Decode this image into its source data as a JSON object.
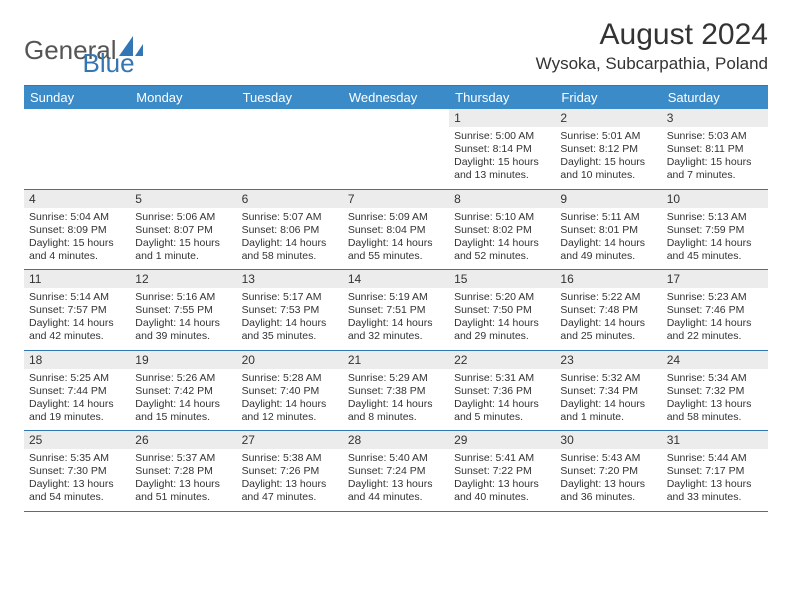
{
  "logo": {
    "text1": "General",
    "text2": "Blue"
  },
  "title": "August 2024",
  "location": "Wysoka, Subcarpathia, Poland",
  "colors": {
    "header_bg": "#3b8bc8",
    "header_text": "#ffffff",
    "rule": "#3277b3",
    "daynum_bg": "#ececec",
    "body_text": "#333333"
  },
  "typography": {
    "title_fontsize": 30,
    "location_fontsize": 17,
    "header_fontsize": 13,
    "body_fontsize": 10.5
  },
  "calendar": {
    "type": "table",
    "columns": [
      "Sunday",
      "Monday",
      "Tuesday",
      "Wednesday",
      "Thursday",
      "Friday",
      "Saturday"
    ],
    "weeks": [
      [
        null,
        null,
        null,
        null,
        {
          "n": "1",
          "sr": "5:00 AM",
          "ss": "8:14 PM",
          "dl": "15 hours and 13 minutes."
        },
        {
          "n": "2",
          "sr": "5:01 AM",
          "ss": "8:12 PM",
          "dl": "15 hours and 10 minutes."
        },
        {
          "n": "3",
          "sr": "5:03 AM",
          "ss": "8:11 PM",
          "dl": "15 hours and 7 minutes."
        }
      ],
      [
        {
          "n": "4",
          "sr": "5:04 AM",
          "ss": "8:09 PM",
          "dl": "15 hours and 4 minutes."
        },
        {
          "n": "5",
          "sr": "5:06 AM",
          "ss": "8:07 PM",
          "dl": "15 hours and 1 minute."
        },
        {
          "n": "6",
          "sr": "5:07 AM",
          "ss": "8:06 PM",
          "dl": "14 hours and 58 minutes."
        },
        {
          "n": "7",
          "sr": "5:09 AM",
          "ss": "8:04 PM",
          "dl": "14 hours and 55 minutes."
        },
        {
          "n": "8",
          "sr": "5:10 AM",
          "ss": "8:02 PM",
          "dl": "14 hours and 52 minutes."
        },
        {
          "n": "9",
          "sr": "5:11 AM",
          "ss": "8:01 PM",
          "dl": "14 hours and 49 minutes."
        },
        {
          "n": "10",
          "sr": "5:13 AM",
          "ss": "7:59 PM",
          "dl": "14 hours and 45 minutes."
        }
      ],
      [
        {
          "n": "11",
          "sr": "5:14 AM",
          "ss": "7:57 PM",
          "dl": "14 hours and 42 minutes."
        },
        {
          "n": "12",
          "sr": "5:16 AM",
          "ss": "7:55 PM",
          "dl": "14 hours and 39 minutes."
        },
        {
          "n": "13",
          "sr": "5:17 AM",
          "ss": "7:53 PM",
          "dl": "14 hours and 35 minutes."
        },
        {
          "n": "14",
          "sr": "5:19 AM",
          "ss": "7:51 PM",
          "dl": "14 hours and 32 minutes."
        },
        {
          "n": "15",
          "sr": "5:20 AM",
          "ss": "7:50 PM",
          "dl": "14 hours and 29 minutes."
        },
        {
          "n": "16",
          "sr": "5:22 AM",
          "ss": "7:48 PM",
          "dl": "14 hours and 25 minutes."
        },
        {
          "n": "17",
          "sr": "5:23 AM",
          "ss": "7:46 PM",
          "dl": "14 hours and 22 minutes."
        }
      ],
      [
        {
          "n": "18",
          "sr": "5:25 AM",
          "ss": "7:44 PM",
          "dl": "14 hours and 19 minutes."
        },
        {
          "n": "19",
          "sr": "5:26 AM",
          "ss": "7:42 PM",
          "dl": "14 hours and 15 minutes."
        },
        {
          "n": "20",
          "sr": "5:28 AM",
          "ss": "7:40 PM",
          "dl": "14 hours and 12 minutes."
        },
        {
          "n": "21",
          "sr": "5:29 AM",
          "ss": "7:38 PM",
          "dl": "14 hours and 8 minutes."
        },
        {
          "n": "22",
          "sr": "5:31 AM",
          "ss": "7:36 PM",
          "dl": "14 hours and 5 minutes."
        },
        {
          "n": "23",
          "sr": "5:32 AM",
          "ss": "7:34 PM",
          "dl": "14 hours and 1 minute."
        },
        {
          "n": "24",
          "sr": "5:34 AM",
          "ss": "7:32 PM",
          "dl": "13 hours and 58 minutes."
        }
      ],
      [
        {
          "n": "25",
          "sr": "5:35 AM",
          "ss": "7:30 PM",
          "dl": "13 hours and 54 minutes."
        },
        {
          "n": "26",
          "sr": "5:37 AM",
          "ss": "7:28 PM",
          "dl": "13 hours and 51 minutes."
        },
        {
          "n": "27",
          "sr": "5:38 AM",
          "ss": "7:26 PM",
          "dl": "13 hours and 47 minutes."
        },
        {
          "n": "28",
          "sr": "5:40 AM",
          "ss": "7:24 PM",
          "dl": "13 hours and 44 minutes."
        },
        {
          "n": "29",
          "sr": "5:41 AM",
          "ss": "7:22 PM",
          "dl": "13 hours and 40 minutes."
        },
        {
          "n": "30",
          "sr": "5:43 AM",
          "ss": "7:20 PM",
          "dl": "13 hours and 36 minutes."
        },
        {
          "n": "31",
          "sr": "5:44 AM",
          "ss": "7:17 PM",
          "dl": "13 hours and 33 minutes."
        }
      ]
    ],
    "labels": {
      "sunrise": "Sunrise:",
      "sunset": "Sunset:",
      "daylight": "Daylight:"
    }
  }
}
